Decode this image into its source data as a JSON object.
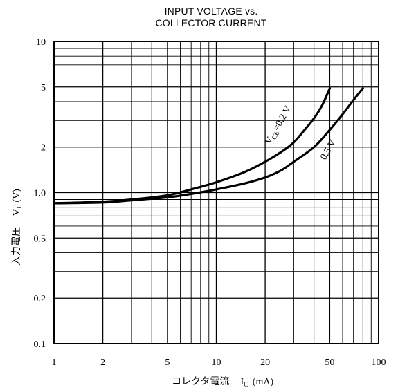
{
  "chart_data": {
    "type": "line",
    "title_lines": [
      "INPUT VOLTAGE vs.",
      "COLLECTOR CURRENT"
    ],
    "xlabel": "コレクタ電流　Iᴄ (mA)",
    "xlabel_parts": {
      "text": "コレクタ電流",
      "symbol": "I",
      "subscript": "C",
      "unit": "(mA)"
    },
    "ylabel": "入力電圧　Vᴵ (V)",
    "ylabel_parts": {
      "text": "入力電圧",
      "symbol": "V",
      "subscript": "I",
      "unit": "(V)"
    },
    "x_scale": "log",
    "y_scale": "log",
    "xlim": [
      1,
      100
    ],
    "ylim": [
      0.1,
      10
    ],
    "x_ticks": [
      1,
      2,
      5,
      10,
      20,
      50,
      100
    ],
    "x_tick_labels": [
      "1",
      "2",
      "5",
      "10",
      "20",
      "50",
      "100"
    ],
    "y_ticks": [
      0.1,
      0.2,
      0.5,
      1.0,
      2,
      5,
      10
    ],
    "y_tick_labels": [
      "0.1",
      "0.2",
      "0.5",
      "1.0",
      "2",
      "5",
      "10"
    ],
    "grid": true,
    "series": [
      {
        "name": "VCE=0.2 V",
        "label_parts": {
          "symbol": "V",
          "subscript": "CE",
          "rest": "=0.2 V"
        },
        "points": [
          [
            1,
            0.85
          ],
          [
            2,
            0.87
          ],
          [
            3,
            0.9
          ],
          [
            5,
            0.96
          ],
          [
            7,
            1.05
          ],
          [
            10,
            1.17
          ],
          [
            15,
            1.37
          ],
          [
            20,
            1.6
          ],
          [
            25,
            1.85
          ],
          [
            30,
            2.15
          ],
          [
            35,
            2.6
          ],
          [
            40,
            3.1
          ],
          [
            45,
            3.8
          ],
          [
            50,
            4.9
          ]
        ]
      },
      {
        "name": "0.5 V",
        "label_parts": {
          "rest": "0.5 V"
        },
        "points": [
          [
            1,
            0.85
          ],
          [
            2,
            0.86
          ],
          [
            3,
            0.89
          ],
          [
            5,
            0.93
          ],
          [
            7,
            0.98
          ],
          [
            10,
            1.05
          ],
          [
            15,
            1.15
          ],
          [
            20,
            1.26
          ],
          [
            25,
            1.4
          ],
          [
            30,
            1.6
          ],
          [
            40,
            2.0
          ],
          [
            50,
            2.6
          ],
          [
            60,
            3.3
          ],
          [
            70,
            4.1
          ],
          [
            80,
            4.9
          ]
        ]
      }
    ]
  }
}
